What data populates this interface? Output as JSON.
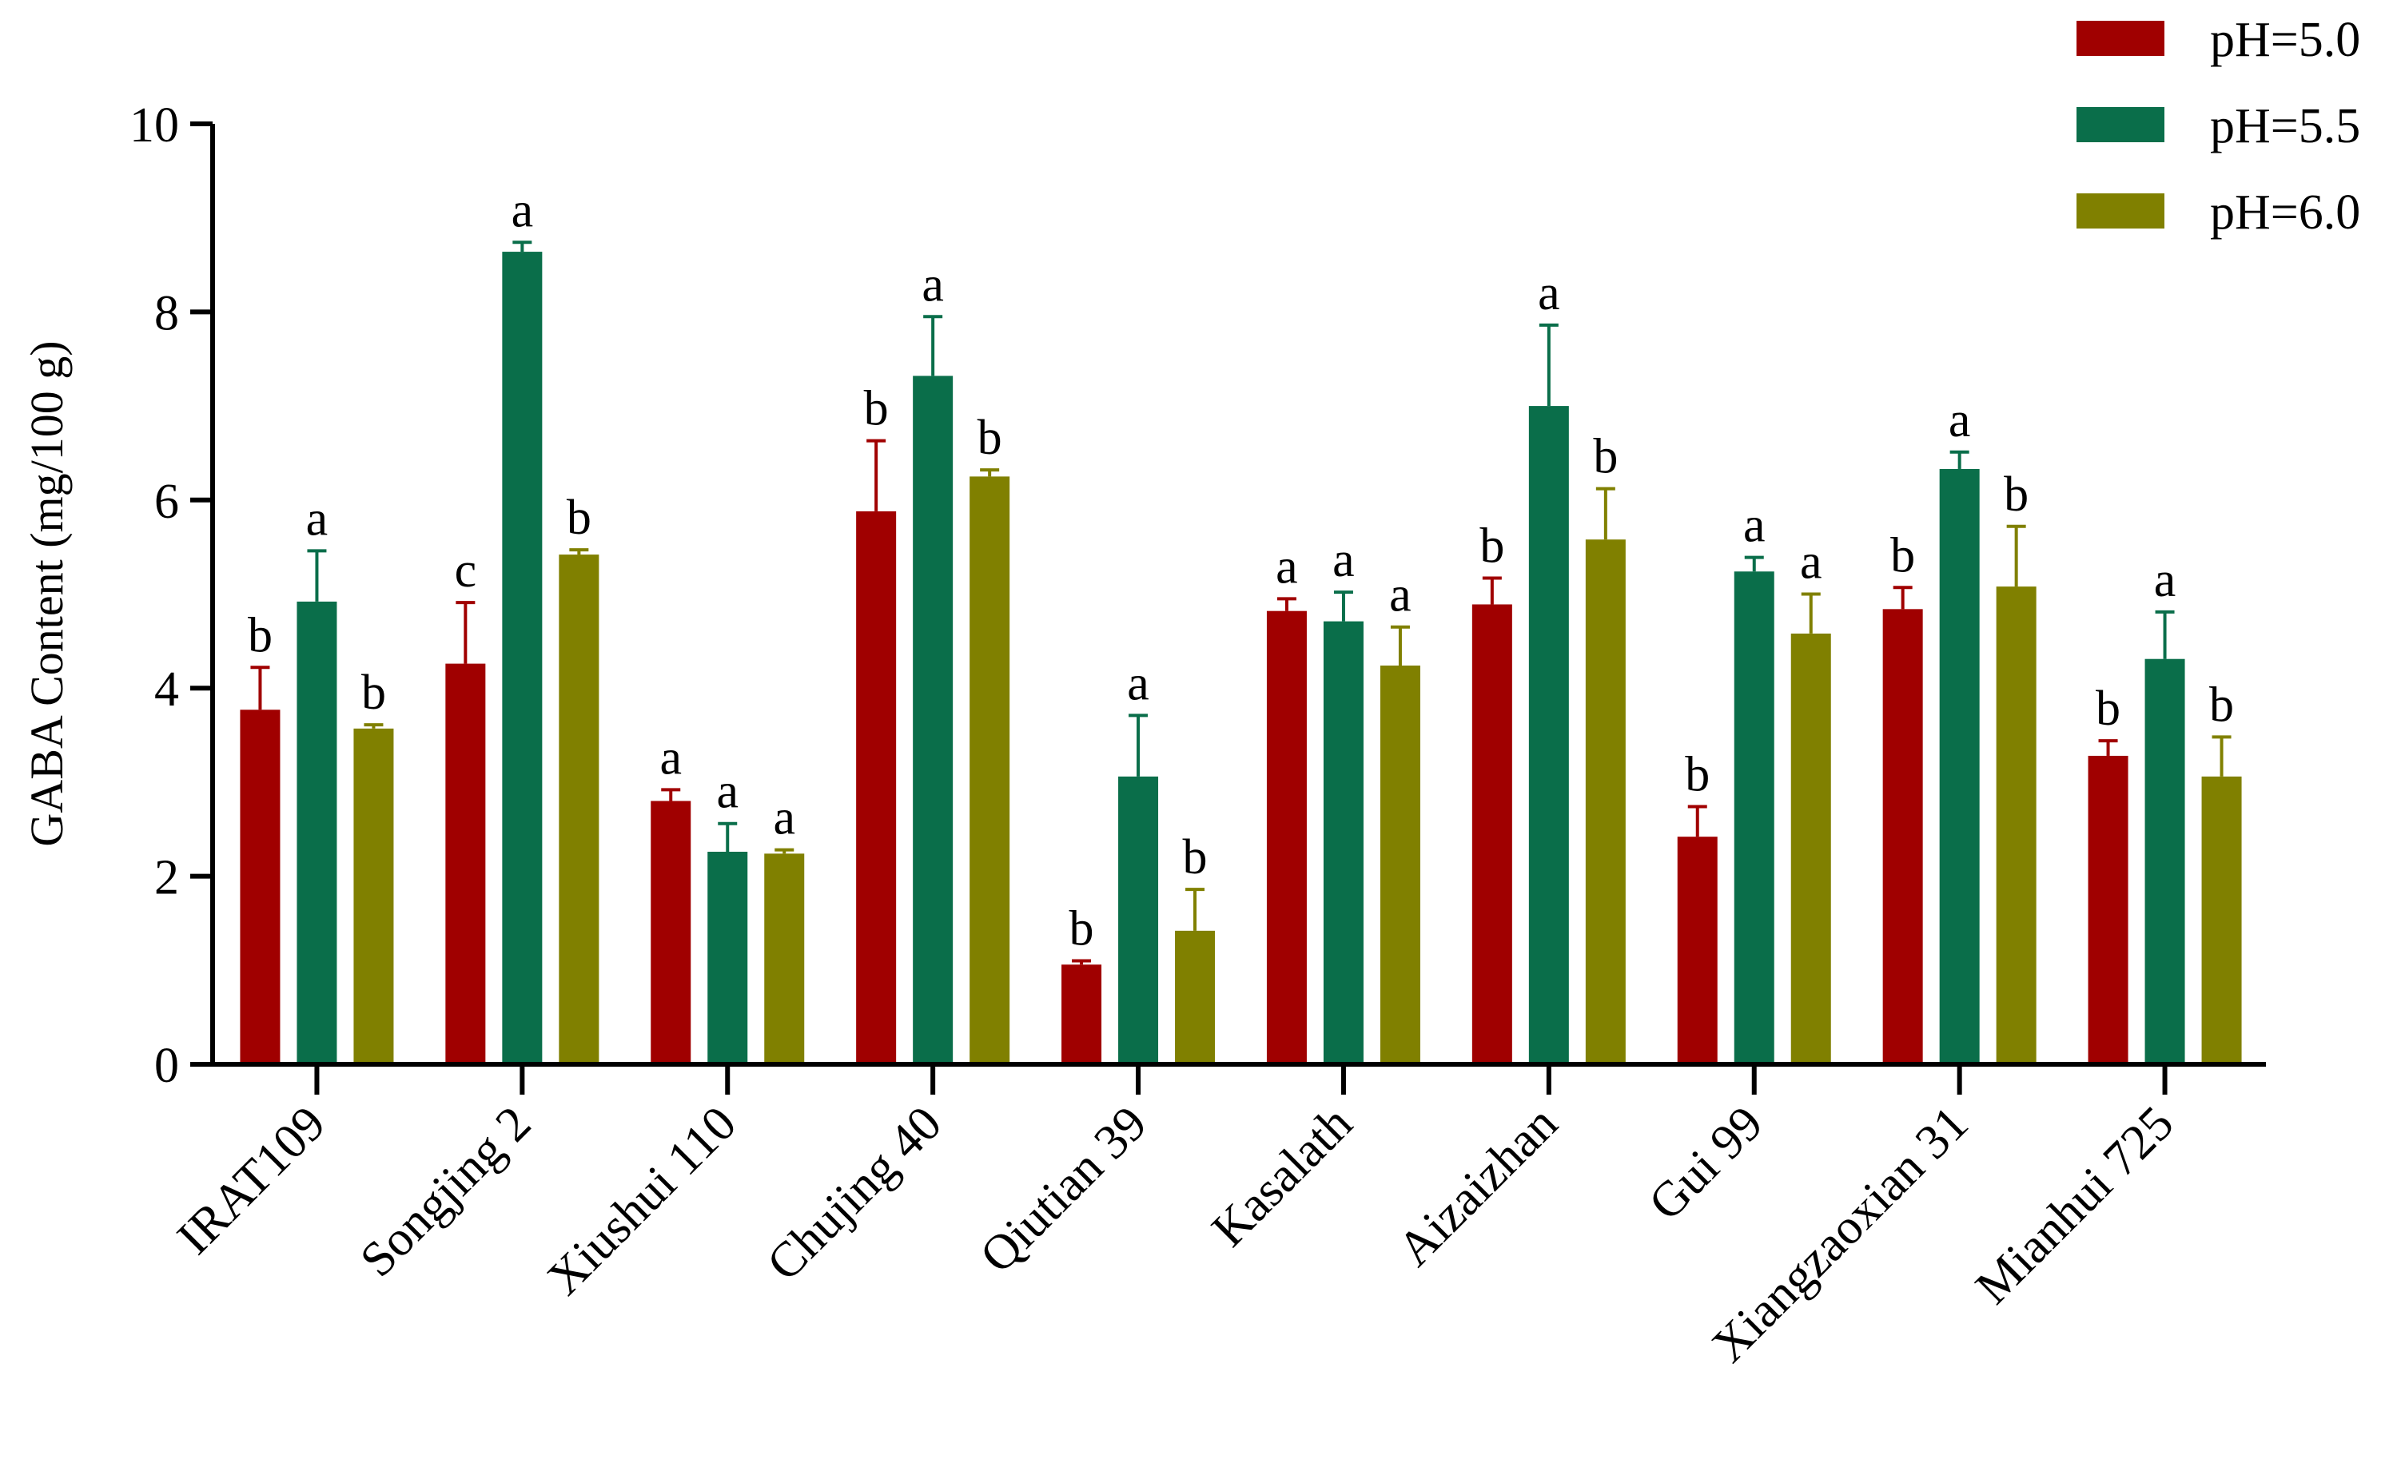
{
  "chart_data": {
    "type": "bar",
    "title": "",
    "xlabel": "",
    "ylabel": "GABA Content (mg/100 g)",
    "ylim": [
      0,
      10
    ],
    "yticks": [
      "0",
      "2",
      "4",
      "6",
      "8",
      "10"
    ],
    "categories": [
      "IRAT109",
      "Songjing 2",
      "Xiushui 110",
      "Chujing 40",
      "Qiutian 39",
      "Kasalath",
      "Aizaizhan",
      "Gui 99",
      "Xiangzaoxian 31",
      "Mianhui 725"
    ],
    "legend_position": "top-right",
    "grid": false,
    "series": [
      {
        "name": "pH=5.0",
        "color": "#a00000",
        "values": [
          3.77,
          4.26,
          2.8,
          5.88,
          1.06,
          4.82,
          4.89,
          2.42,
          4.84,
          3.28
        ],
        "errors": [
          0.45,
          0.65,
          0.12,
          0.75,
          0.04,
          0.13,
          0.28,
          0.32,
          0.23,
          0.16
        ],
        "letters": [
          "b",
          "c",
          "a",
          "b",
          "b",
          "a",
          "b",
          "b",
          "b",
          "b"
        ]
      },
      {
        "name": "pH=5.5",
        "color": "#0a6e4a",
        "values": [
          4.92,
          8.64,
          2.26,
          7.32,
          3.06,
          4.71,
          7.0,
          5.24,
          6.33,
          4.31
        ],
        "errors": [
          0.54,
          0.1,
          0.3,
          0.63,
          0.65,
          0.31,
          0.86,
          0.15,
          0.18,
          0.5
        ],
        "letters": [
          "a",
          "a",
          "a",
          "a",
          "a",
          "a",
          "a",
          "a",
          "a",
          "a"
        ]
      },
      {
        "name": "pH=6.0",
        "color": "#808000",
        "values": [
          3.57,
          5.42,
          2.24,
          6.25,
          1.42,
          4.24,
          5.58,
          4.58,
          5.08,
          3.06
        ],
        "errors": [
          0.04,
          0.05,
          0.04,
          0.07,
          0.44,
          0.41,
          0.54,
          0.42,
          0.64,
          0.42
        ],
        "letters": [
          "b",
          "b",
          "a",
          "b",
          "b",
          "a",
          "b",
          "a",
          "b",
          "b"
        ]
      }
    ]
  }
}
